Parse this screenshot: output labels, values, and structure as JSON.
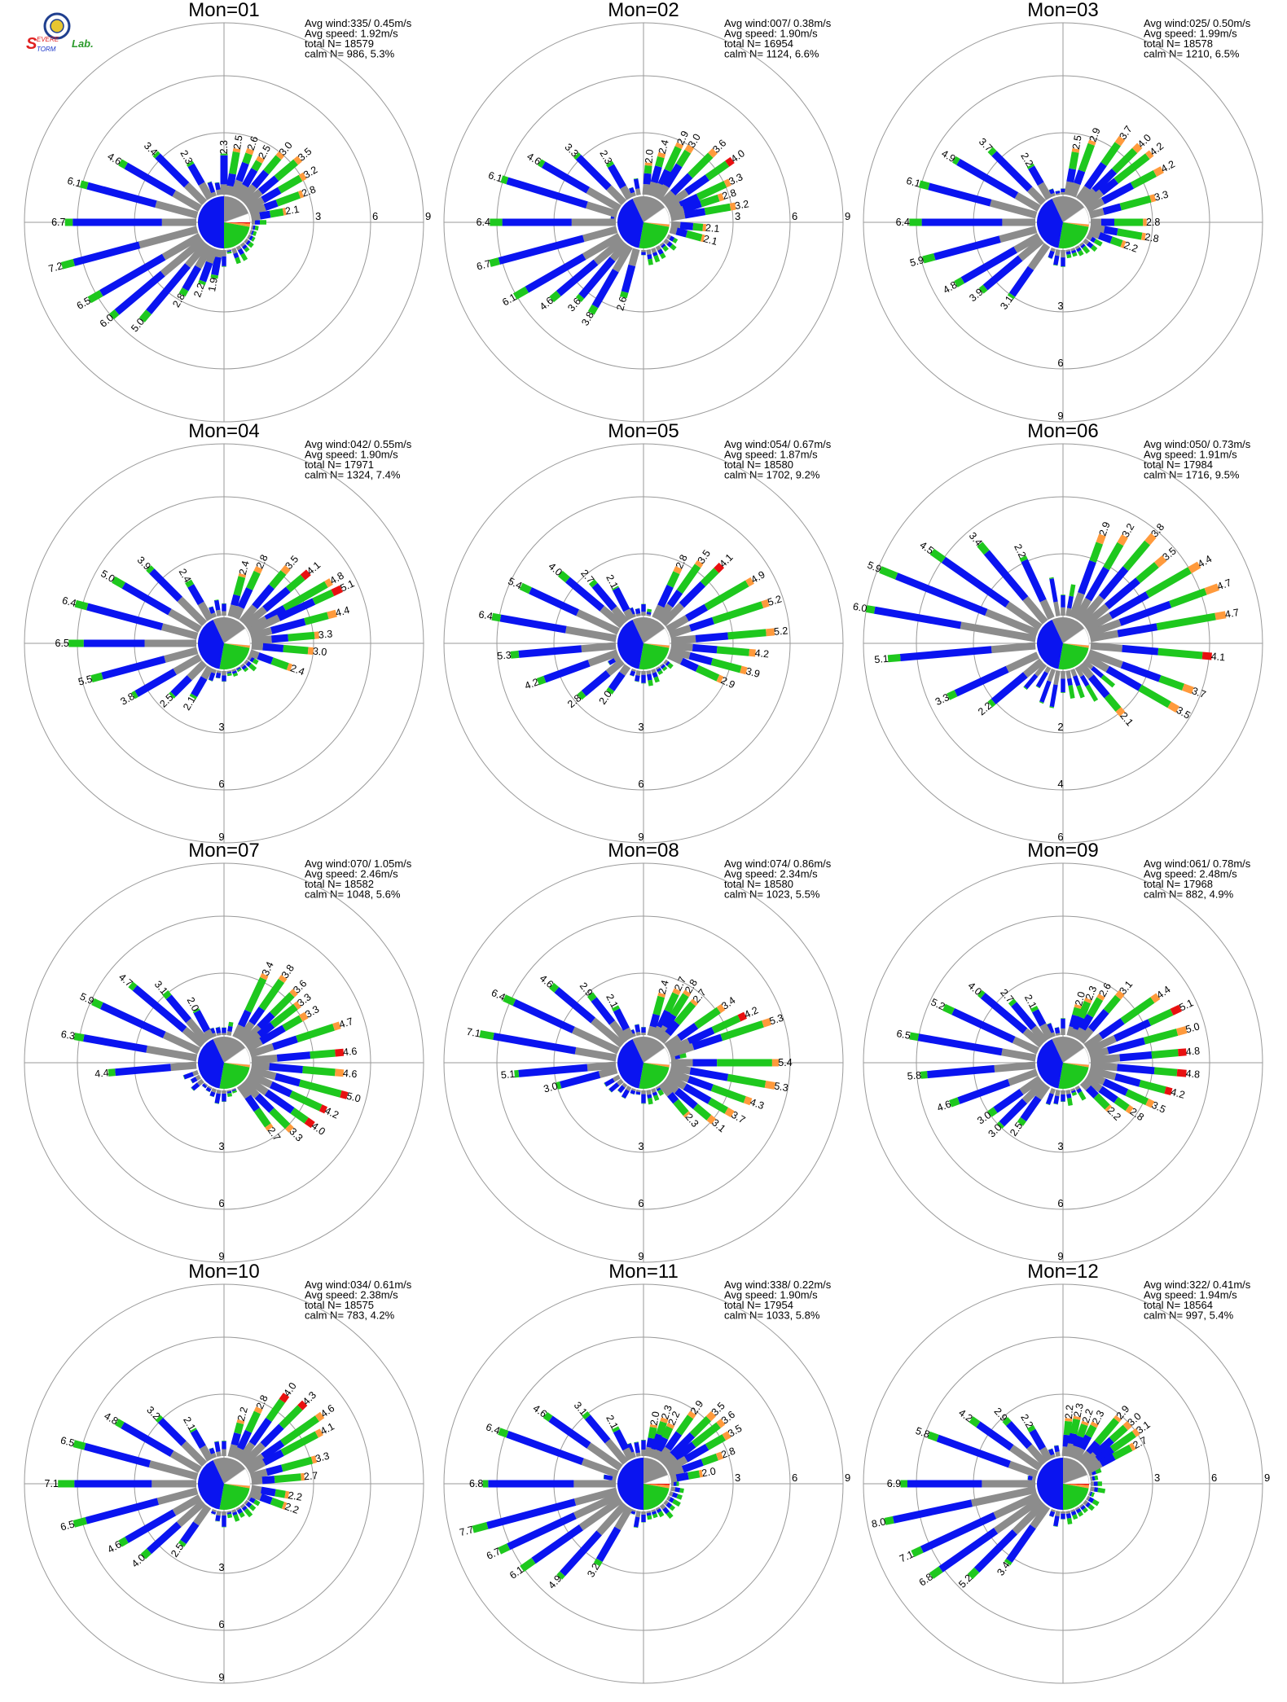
{
  "logo": {
    "letter_s": "S",
    "word_evere": "EVERE",
    "word_torm": "TORM",
    "word_lab": "Lab.",
    "colors": {
      "seal": "#1f3f8f",
      "s_red": "#e02020",
      "s_blue": "#1a35c9",
      "lab_green": "#2a9a2a"
    }
  },
  "colors": {
    "blue": "#0a14f0",
    "green": "#1ec81e",
    "orange": "#ff9a3c",
    "red": "#e81010",
    "gray": "#8c8c8c",
    "ring": "#9a9a9a",
    "pie_white": "#ffffff"
  },
  "stat_labels": {
    "avg_wind": "Avg wind:",
    "avg_speed": "Avg speed:",
    "total_n": "total N=",
    "calm_n": "calm N="
  },
  "chart_data": [
    {
      "type": "wind-rose",
      "title": "Mon=01",
      "avg_wind": "335/ 0.45m/s",
      "avg_speed": "1.92m/s",
      "total_n": "18579",
      "calm_n": "986,   5.3%",
      "ring_labels": [
        "3",
        "6",
        "9"
      ],
      "ring_values": [
        3,
        6,
        9
      ],
      "ring_label_direction": "east",
      "bars": [
        {
          "deg": 0,
          "v": 2.3
        },
        {
          "deg": 10,
          "v": 2.5
        },
        {
          "deg": 20,
          "v": 2.6
        },
        {
          "deg": 30,
          "v": 2.5
        },
        {
          "deg": 40,
          "v": 3.0
        },
        {
          "deg": 50,
          "v": 3.5
        },
        {
          "deg": 60,
          "v": 3.2
        },
        {
          "deg": 70,
          "v": 2.8
        },
        {
          "deg": 80,
          "v": 2.1
        },
        {
          "deg": 190,
          "v": 1.9
        },
        {
          "deg": 200,
          "v": 2.2
        },
        {
          "deg": 210,
          "v": 2.8
        },
        {
          "deg": 220,
          "v": 5.0
        },
        {
          "deg": 230,
          "v": 6.0
        },
        {
          "deg": 240,
          "v": 6.5
        },
        {
          "deg": 255,
          "v": 7.2
        },
        {
          "deg": 270,
          "v": 6.7
        },
        {
          "deg": 285,
          "v": 6.1
        },
        {
          "deg": 300,
          "v": 4.6
        },
        {
          "deg": 315,
          "v": 3.4
        },
        {
          "deg": 330,
          "v": 2.3
        }
      ]
    },
    {
      "type": "wind-rose",
      "title": "Mon=02",
      "avg_wind": "007/ 0.38m/s",
      "avg_speed": "1.90m/s",
      "total_n": "16954",
      "calm_n": "1124,   6.6%",
      "ring_labels": [
        "3",
        "6",
        "9"
      ],
      "ring_values": [
        3,
        6,
        9
      ],
      "ring_label_direction": "east",
      "bars": [
        {
          "deg": 5,
          "v": 2.0
        },
        {
          "deg": 15,
          "v": 2.4
        },
        {
          "deg": 25,
          "v": 2.9
        },
        {
          "deg": 32,
          "v": 3.0
        },
        {
          "deg": 45,
          "v": 3.6
        },
        {
          "deg": 55,
          "v": 4.0
        },
        {
          "deg": 65,
          "v": 3.3
        },
        {
          "deg": 72,
          "v": 2.8
        },
        {
          "deg": 80,
          "v": 3.2
        },
        {
          "deg": 95,
          "v": 2.1
        },
        {
          "deg": 105,
          "v": 2.1
        },
        {
          "deg": 195,
          "v": 2.6
        },
        {
          "deg": 210,
          "v": 3.8
        },
        {
          "deg": 220,
          "v": 3.6
        },
        {
          "deg": 230,
          "v": 4.6
        },
        {
          "deg": 240,
          "v": 6.1
        },
        {
          "deg": 255,
          "v": 6.7
        },
        {
          "deg": 270,
          "v": 6.4
        },
        {
          "deg": 287,
          "v": 6.1
        },
        {
          "deg": 300,
          "v": 4.6
        },
        {
          "deg": 315,
          "v": 3.3
        },
        {
          "deg": 330,
          "v": 2.3
        }
      ]
    },
    {
      "type": "wind-rose",
      "title": "Mon=03",
      "avg_wind": "025/ 0.50m/s",
      "avg_speed": "1.99m/s",
      "total_n": "18578",
      "calm_n": "1210,   6.5%",
      "ring_labels": [
        "3",
        "6",
        "9"
      ],
      "ring_values": [
        3,
        6,
        9
      ],
      "ring_label_direction": "south",
      "bars": [
        {
          "deg": 10,
          "v": 2.5
        },
        {
          "deg": 20,
          "v": 2.9
        },
        {
          "deg": 35,
          "v": 3.7
        },
        {
          "deg": 45,
          "v": 4.0
        },
        {
          "deg": 52,
          "v": 4.2
        },
        {
          "deg": 62,
          "v": 4.2
        },
        {
          "deg": 75,
          "v": 3.3
        },
        {
          "deg": 90,
          "v": 2.8
        },
        {
          "deg": 100,
          "v": 2.8
        },
        {
          "deg": 110,
          "v": 2.2
        },
        {
          "deg": 215,
          "v": 3.1
        },
        {
          "deg": 230,
          "v": 3.9
        },
        {
          "deg": 240,
          "v": 4.8
        },
        {
          "deg": 255,
          "v": 5.9
        },
        {
          "deg": 270,
          "v": 6.4
        },
        {
          "deg": 285,
          "v": 6.1
        },
        {
          "deg": 300,
          "v": 4.9
        },
        {
          "deg": 315,
          "v": 3.7
        },
        {
          "deg": 330,
          "v": 2.2
        }
      ]
    },
    {
      "type": "wind-rose",
      "title": "Mon=04",
      "avg_wind": "042/ 0.55m/s",
      "avg_speed": "1.90m/s",
      "total_n": "17971",
      "calm_n": "1324,   7.4%",
      "ring_labels": [
        "3",
        "6",
        "9"
      ],
      "ring_values": [
        3,
        6,
        9
      ],
      "ring_label_direction": "south",
      "bars": [
        {
          "deg": 15,
          "v": 2.4
        },
        {
          "deg": 25,
          "v": 2.8
        },
        {
          "deg": 40,
          "v": 3.5
        },
        {
          "deg": 50,
          "v": 4.1
        },
        {
          "deg": 60,
          "v": 4.8
        },
        {
          "deg": 65,
          "v": 5.1
        },
        {
          "deg": 75,
          "v": 4.4
        },
        {
          "deg": 85,
          "v": 3.3
        },
        {
          "deg": 95,
          "v": 3.0
        },
        {
          "deg": 110,
          "v": 2.4
        },
        {
          "deg": 210,
          "v": 2.1
        },
        {
          "deg": 225,
          "v": 2.5
        },
        {
          "deg": 240,
          "v": 3.8
        },
        {
          "deg": 255,
          "v": 5.5
        },
        {
          "deg": 270,
          "v": 6.5
        },
        {
          "deg": 285,
          "v": 6.4
        },
        {
          "deg": 300,
          "v": 5.0
        },
        {
          "deg": 315,
          "v": 3.9
        },
        {
          "deg": 330,
          "v": 2.4
        }
      ]
    },
    {
      "type": "wind-rose",
      "title": "Mon=05",
      "avg_wind": "054/ 0.67m/s",
      "avg_speed": "1.87m/s",
      "total_n": "18580",
      "calm_n": "1702,   9.2%",
      "ring_labels": [
        "3",
        "6",
        "9"
      ],
      "ring_values": [
        3,
        6,
        9
      ],
      "ring_label_direction": "south",
      "bars": [
        {
          "deg": 25,
          "v": 2.8
        },
        {
          "deg": 35,
          "v": 3.5
        },
        {
          "deg": 45,
          "v": 4.1
        },
        {
          "deg": 60,
          "v": 4.9
        },
        {
          "deg": 72,
          "v": 5.2
        },
        {
          "deg": 85,
          "v": 5.2
        },
        {
          "deg": 95,
          "v": 4.2
        },
        {
          "deg": 105,
          "v": 3.9
        },
        {
          "deg": 115,
          "v": 2.9
        },
        {
          "deg": 215,
          "v": 2.0
        },
        {
          "deg": 230,
          "v": 2.8
        },
        {
          "deg": 250,
          "v": 4.2
        },
        {
          "deg": 265,
          "v": 5.3
        },
        {
          "deg": 280,
          "v": 6.4
        },
        {
          "deg": 295,
          "v": 5.4
        },
        {
          "deg": 310,
          "v": 4.0
        },
        {
          "deg": 320,
          "v": 2.7
        },
        {
          "deg": 333,
          "v": 2.1
        }
      ]
    },
    {
      "type": "wind-rose",
      "title": "Mon=06",
      "avg_wind": "050/ 0.73m/s",
      "avg_speed": "1.91m/s",
      "total_n": "17984",
      "calm_n": "1716,   9.5%",
      "ring_labels": [
        "2",
        "4",
        "6"
      ],
      "ring_values": [
        2,
        4,
        6
      ],
      "ring_label_direction": "south",
      "bars": [
        {
          "deg": 20,
          "v": 2.9
        },
        {
          "deg": 30,
          "v": 3.2
        },
        {
          "deg": 40,
          "v": 3.8
        },
        {
          "deg": 50,
          "v": 3.5
        },
        {
          "deg": 60,
          "v": 4.4
        },
        {
          "deg": 70,
          "v": 4.7
        },
        {
          "deg": 80,
          "v": 4.7
        },
        {
          "deg": 95,
          "v": 4.1
        },
        {
          "deg": 110,
          "v": 3.7
        },
        {
          "deg": 120,
          "v": 3.5
        },
        {
          "deg": 140,
          "v": 2.1
        },
        {
          "deg": 230,
          "v": 2.2
        },
        {
          "deg": 245,
          "v": 3.3
        },
        {
          "deg": 265,
          "v": 5.1
        },
        {
          "deg": 280,
          "v": 6.0
        },
        {
          "deg": 292,
          "v": 5.9
        },
        {
          "deg": 305,
          "v": 4.5
        },
        {
          "deg": 320,
          "v": 3.4
        },
        {
          "deg": 335,
          "v": 2.2
        }
      ]
    },
    {
      "type": "wind-rose",
      "title": "Mon=07",
      "avg_wind": "070/ 1.05m/s",
      "avg_speed": "2.46m/s",
      "total_n": "18582",
      "calm_n": "1048,   5.6%",
      "ring_labels": [
        "3",
        "6",
        "9"
      ],
      "ring_values": [
        3,
        6,
        9
      ],
      "ring_label_direction": "south",
      "bars": [
        {
          "deg": 25,
          "v": 3.4
        },
        {
          "deg": 35,
          "v": 3.8
        },
        {
          "deg": 45,
          "v": 3.6
        },
        {
          "deg": 52,
          "v": 3.3
        },
        {
          "deg": 60,
          "v": 3.3
        },
        {
          "deg": 72,
          "v": 4.7
        },
        {
          "deg": 85,
          "v": 4.6
        },
        {
          "deg": 95,
          "v": 4.6
        },
        {
          "deg": 105,
          "v": 5.0
        },
        {
          "deg": 115,
          "v": 4.2
        },
        {
          "deg": 125,
          "v": 4.0
        },
        {
          "deg": 135,
          "v": 3.3
        },
        {
          "deg": 145,
          "v": 2.7
        },
        {
          "deg": 265,
          "v": 4.4
        },
        {
          "deg": 280,
          "v": 6.3
        },
        {
          "deg": 295,
          "v": 5.9
        },
        {
          "deg": 310,
          "v": 4.7
        },
        {
          "deg": 320,
          "v": 3.1
        },
        {
          "deg": 332,
          "v": 2.0
        }
      ]
    },
    {
      "type": "wind-rose",
      "title": "Mon=08",
      "avg_wind": "074/ 0.86m/s",
      "avg_speed": "2.34m/s",
      "total_n": "18580",
      "calm_n": "1023,   5.5%",
      "ring_labels": [
        "3",
        "6",
        "9"
      ],
      "ring_values": [
        3,
        6,
        9
      ],
      "ring_label_direction": "south",
      "bars": [
        {
          "deg": 15,
          "v": 2.4
        },
        {
          "deg": 25,
          "v": 2.7
        },
        {
          "deg": 32,
          "v": 2.8
        },
        {
          "deg": 40,
          "v": 2.7
        },
        {
          "deg": 55,
          "v": 3.4
        },
        {
          "deg": 65,
          "v": 4.2
        },
        {
          "deg": 72,
          "v": 5.3
        },
        {
          "deg": 90,
          "v": 5.4
        },
        {
          "deg": 100,
          "v": 5.3
        },
        {
          "deg": 110,
          "v": 4.3
        },
        {
          "deg": 120,
          "v": 3.7
        },
        {
          "deg": 130,
          "v": 3.1
        },
        {
          "deg": 140,
          "v": 2.3
        },
        {
          "deg": 255,
          "v": 3.0
        },
        {
          "deg": 265,
          "v": 5.1
        },
        {
          "deg": 280,
          "v": 7.1
        },
        {
          "deg": 295,
          "v": 6.4
        },
        {
          "deg": 310,
          "v": 4.6
        },
        {
          "deg": 322,
          "v": 2.9
        },
        {
          "deg": 333,
          "v": 2.1
        }
      ]
    },
    {
      "type": "wind-rose",
      "title": "Mon=09",
      "avg_wind": "061/ 0.78m/s",
      "avg_speed": "2.48m/s",
      "total_n": "17968",
      "calm_n": "882,   4.9%",
      "ring_labels": [
        "3",
        "6",
        "9"
      ],
      "ring_values": [
        3,
        6,
        9
      ],
      "ring_label_direction": "south",
      "bars": [
        {
          "deg": 15,
          "v": 2.0
        },
        {
          "deg": 22,
          "v": 2.3
        },
        {
          "deg": 30,
          "v": 2.6
        },
        {
          "deg": 40,
          "v": 3.1
        },
        {
          "deg": 55,
          "v": 4.4
        },
        {
          "deg": 65,
          "v": 5.1
        },
        {
          "deg": 75,
          "v": 5.0
        },
        {
          "deg": 85,
          "v": 4.8
        },
        {
          "deg": 95,
          "v": 4.8
        },
        {
          "deg": 105,
          "v": 4.2
        },
        {
          "deg": 115,
          "v": 3.5
        },
        {
          "deg": 125,
          "v": 2.8
        },
        {
          "deg": 135,
          "v": 2.2
        },
        {
          "deg": 215,
          "v": 2.5
        },
        {
          "deg": 225,
          "v": 3.0
        },
        {
          "deg": 235,
          "v": 3.0
        },
        {
          "deg": 250,
          "v": 4.6
        },
        {
          "deg": 265,
          "v": 5.8
        },
        {
          "deg": 280,
          "v": 6.5
        },
        {
          "deg": 295,
          "v": 5.2
        },
        {
          "deg": 310,
          "v": 4.0
        },
        {
          "deg": 320,
          "v": 2.7
        },
        {
          "deg": 332,
          "v": 2.1
        }
      ]
    },
    {
      "type": "wind-rose",
      "title": "Mon=10",
      "avg_wind": "034/ 0.61m/s",
      "avg_speed": "2.38m/s",
      "total_n": "18575",
      "calm_n": "783,   4.2%",
      "ring_labels": [
        "3",
        "6",
        "9"
      ],
      "ring_values": [
        3,
        6,
        9
      ],
      "ring_label_direction": "south",
      "bars": [
        {
          "deg": 15,
          "v": 2.2
        },
        {
          "deg": 25,
          "v": 2.8
        },
        {
          "deg": 35,
          "v": 4.0
        },
        {
          "deg": 45,
          "v": 4.3
        },
        {
          "deg": 55,
          "v": 4.6
        },
        {
          "deg": 62,
          "v": 4.1
        },
        {
          "deg": 75,
          "v": 3.3
        },
        {
          "deg": 85,
          "v": 2.7
        },
        {
          "deg": 100,
          "v": 2.2
        },
        {
          "deg": 110,
          "v": 2.2
        },
        {
          "deg": 215,
          "v": 2.5
        },
        {
          "deg": 228,
          "v": 4.0
        },
        {
          "deg": 240,
          "v": 4.6
        },
        {
          "deg": 255,
          "v": 6.5
        },
        {
          "deg": 270,
          "v": 7.1
        },
        {
          "deg": 285,
          "v": 6.5
        },
        {
          "deg": 300,
          "v": 4.8
        },
        {
          "deg": 315,
          "v": 3.2
        },
        {
          "deg": 330,
          "v": 2.1
        }
      ]
    },
    {
      "type": "wind-rose",
      "title": "Mon=11",
      "avg_wind": "338/ 0.22m/s",
      "avg_speed": "1.90m/s",
      "total_n": "17954",
      "calm_n": "1033,   5.8%",
      "ring_labels": [
        "3",
        "6",
        "9"
      ],
      "ring_values": [
        3,
        6,
        9
      ],
      "ring_label_direction": "east",
      "bars": [
        {
          "deg": 10,
          "v": 2.0
        },
        {
          "deg": 18,
          "v": 2.3
        },
        {
          "deg": 25,
          "v": 2.2
        },
        {
          "deg": 35,
          "v": 2.9
        },
        {
          "deg": 45,
          "v": 3.5
        },
        {
          "deg": 52,
          "v": 3.6
        },
        {
          "deg": 60,
          "v": 3.5
        },
        {
          "deg": 70,
          "v": 2.8
        },
        {
          "deg": 80,
          "v": 2.0
        },
        {
          "deg": 210,
          "v": 3.2
        },
        {
          "deg": 222,
          "v": 4.9
        },
        {
          "deg": 235,
          "v": 6.1
        },
        {
          "deg": 245,
          "v": 6.7
        },
        {
          "deg": 255,
          "v": 7.7
        },
        {
          "deg": 270,
          "v": 6.8
        },
        {
          "deg": 290,
          "v": 6.4
        },
        {
          "deg": 305,
          "v": 4.6
        },
        {
          "deg": 320,
          "v": 3.1
        },
        {
          "deg": 333,
          "v": 2.1
        }
      ]
    },
    {
      "type": "wind-rose",
      "title": "Mon=12",
      "avg_wind": "322/ 0.41m/s",
      "avg_speed": "1.94m/s",
      "total_n": "18564",
      "calm_n": "997,   5.4%",
      "ring_labels": [
        "3",
        "6",
        "9"
      ],
      "ring_values": [
        3,
        6,
        9
      ],
      "ring_label_direction": "east",
      "bars": [
        {
          "deg": 5,
          "v": 2.2
        },
        {
          "deg": 12,
          "v": 2.3
        },
        {
          "deg": 20,
          "v": 2.2
        },
        {
          "deg": 28,
          "v": 2.3
        },
        {
          "deg": 40,
          "v": 2.9
        },
        {
          "deg": 48,
          "v": 3.0
        },
        {
          "deg": 55,
          "v": 3.1
        },
        {
          "deg": 62,
          "v": 2.7
        },
        {
          "deg": 215,
          "v": 3.4
        },
        {
          "deg": 225,
          "v": 5.2
        },
        {
          "deg": 235,
          "v": 6.8
        },
        {
          "deg": 245,
          "v": 7.1
        },
        {
          "deg": 258,
          "v": 8.0
        },
        {
          "deg": 270,
          "v": 6.9
        },
        {
          "deg": 290,
          "v": 5.8
        },
        {
          "deg": 305,
          "v": 4.2
        },
        {
          "deg": 318,
          "v": 2.9
        },
        {
          "deg": 330,
          "v": 2.2
        }
      ]
    }
  ]
}
